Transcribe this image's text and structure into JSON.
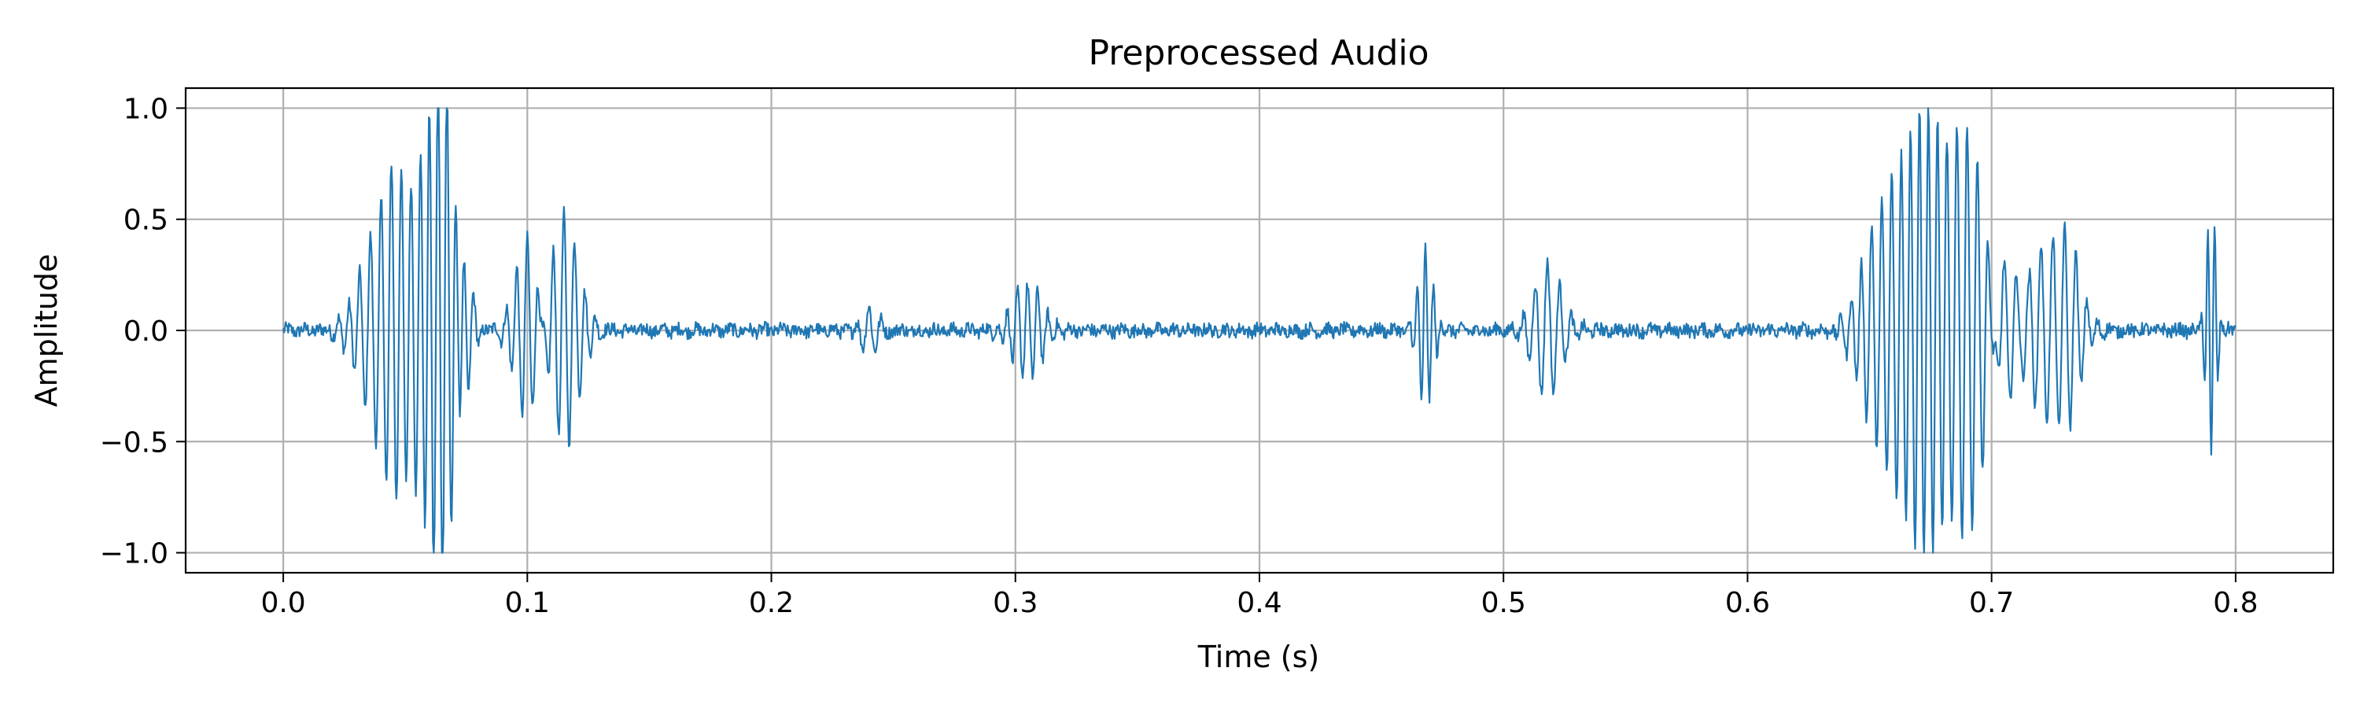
{
  "chart_data": {
    "type": "line",
    "title": "Preprocessed Audio",
    "xlabel": "Time (s)",
    "ylabel": "Amplitude",
    "xlim": [
      -0.04,
      0.84
    ],
    "ylim": [
      -1.09,
      1.09
    ],
    "x_ticks": [
      0.0,
      0.1,
      0.2,
      0.3,
      0.4,
      0.5,
      0.6,
      0.7,
      0.8
    ],
    "x_tick_labels": [
      "0.0",
      "0.1",
      "0.2",
      "0.3",
      "0.4",
      "0.5",
      "0.6",
      "0.7",
      "0.8"
    ],
    "y_ticks": [
      1.0,
      0.5,
      0.0,
      -0.5,
      -1.0
    ],
    "y_tick_labels": [
      "1.0",
      "0.5",
      "0.0",
      "−0.5",
      "−1.0"
    ],
    "grid": true,
    "series": [
      {
        "color": "#1f77b4",
        "x_start": 0.0,
        "x_end": 0.8,
        "noise_amplitude": 0.03,
        "bursts": [
          {
            "t": 0.04,
            "amp": 0.48,
            "freq": 230,
            "width": 0.008
          },
          {
            "t": 0.05,
            "amp": -0.56,
            "freq": 260,
            "width": 0.006
          },
          {
            "t": 0.06,
            "amp": 0.65,
            "freq": 280,
            "width": 0.006
          },
          {
            "t": 0.067,
            "amp": 0.78,
            "freq": 270,
            "width": 0.005
          },
          {
            "t": 0.073,
            "amp": 0.18,
            "freq": 200,
            "width": 0.004
          },
          {
            "t": 0.1,
            "amp": 0.43,
            "freq": 230,
            "width": 0.005
          },
          {
            "t": 0.115,
            "amp": 0.53,
            "freq": 230,
            "width": 0.006
          },
          {
            "t": 0.24,
            "amp": 0.1,
            "freq": 200,
            "width": 0.004
          },
          {
            "t": 0.305,
            "amp": 0.22,
            "freq": 240,
            "width": 0.006
          },
          {
            "t": 0.468,
            "amp": 0.37,
            "freq": 300,
            "width": 0.003
          },
          {
            "t": 0.518,
            "amp": 0.3,
            "freq": 200,
            "width": 0.006
          },
          {
            "t": 0.655,
            "amp": 0.52,
            "freq": 240,
            "width": 0.008
          },
          {
            "t": 0.667,
            "amp": 0.52,
            "freq": 250,
            "width": 0.006
          },
          {
            "t": 0.674,
            "amp": 0.99,
            "freq": 260,
            "width": 0.006
          },
          {
            "t": 0.69,
            "amp": 0.92,
            "freq": 240,
            "width": 0.007
          },
          {
            "t": 0.705,
            "amp": 0.38,
            "freq": 200,
            "width": 0.005
          },
          {
            "t": 0.72,
            "amp": 0.32,
            "freq": 220,
            "width": 0.005
          },
          {
            "t": 0.73,
            "amp": 0.45,
            "freq": 220,
            "width": 0.006
          },
          {
            "t": 0.79,
            "amp": -0.58,
            "freq": 350,
            "width": 0.002
          }
        ]
      }
    ]
  }
}
